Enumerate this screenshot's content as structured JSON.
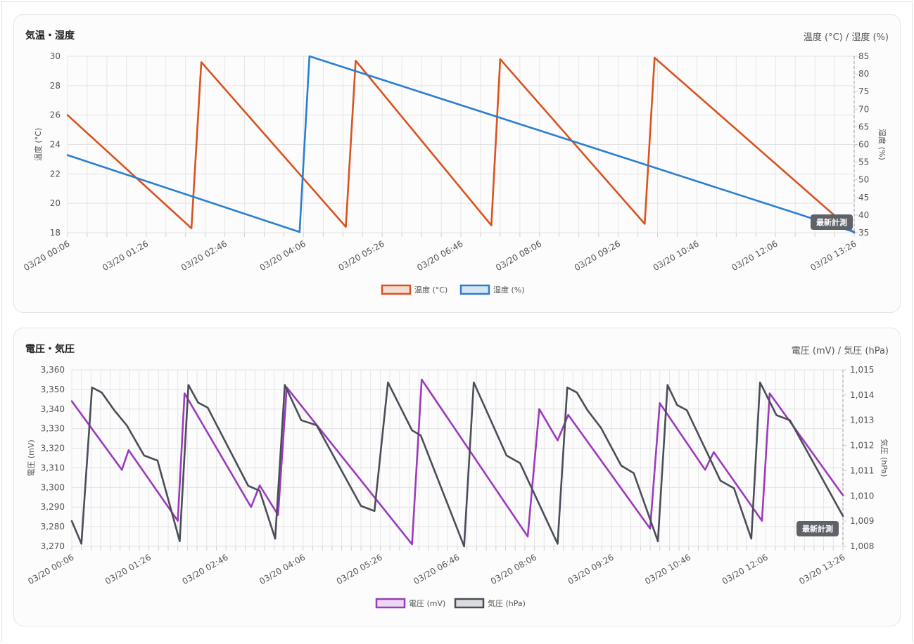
{
  "chart_data": [
    {
      "type": "line",
      "title": "気温・湿度",
      "unit_label": "温度 (°C) / 湿度 (%)",
      "x_tick_labels": [
        "03/20 00:06",
        "03/20 01:26",
        "03/20 02:46",
        "03/20 04:06",
        "03/20 05:26",
        "03/20 06:46",
        "03/20 08:06",
        "03/20 09:26",
        "03/20 10:46",
        "03/20 12:06",
        "03/20 13:26"
      ],
      "y_left": {
        "label": "温度 (°C)",
        "min": 18,
        "max": 30,
        "ticks": [
          "18",
          "20",
          "22",
          "24",
          "26",
          "28",
          "30"
        ]
      },
      "y_right": {
        "label": "湿度 (%)",
        "min": 35,
        "max": 85,
        "ticks": [
          "35",
          "40",
          "45",
          "50",
          "55",
          "60",
          "65",
          "70",
          "75",
          "80",
          "85"
        ]
      },
      "series": [
        {
          "name": "温度 (°C)",
          "axis": "left",
          "color": "#d9531e",
          "points": [
            [
              "03/20 00:06",
              26.0
            ],
            [
              "03/20 02:12",
              18.3
            ],
            [
              "03/20 02:22",
              29.6
            ],
            [
              "03/20 04:49",
              18.4
            ],
            [
              "03/20 04:59",
              29.7
            ],
            [
              "03/20 07:17",
              18.5
            ],
            [
              "03/20 07:26",
              29.8
            ],
            [
              "03/20 09:53",
              18.6
            ],
            [
              "03/20 10:03",
              29.9
            ],
            [
              "03/20 13:26",
              18.0
            ]
          ]
        },
        {
          "name": "湿度 (%)",
          "axis": "right",
          "color": "#2a7fd0",
          "points": [
            [
              "03/20 00:06",
              57
            ],
            [
              "03/20 04:02",
              35.2
            ],
            [
              "03/20 04:12",
              85
            ],
            [
              "03/20 13:26",
              35.2
            ]
          ]
        }
      ],
      "grid": true,
      "legend": "bottom-center",
      "badge": "最新計測"
    },
    {
      "type": "line",
      "title": "電圧・気圧",
      "unit_label": "電圧 (mV) / 気圧 (hPa)",
      "x_tick_labels": [
        "03/20 00:06",
        "03/20 01:26",
        "03/20 02:46",
        "03/20 04:06",
        "03/20 05:26",
        "03/20 06:46",
        "03/20 08:06",
        "03/20 09:26",
        "03/20 10:46",
        "03/20 12:06",
        "03/20 13:26"
      ],
      "y_left": {
        "label": "電圧 (mV)",
        "min": 3270,
        "max": 3360,
        "ticks": [
          "3,270",
          "3,280",
          "3,290",
          "3,300",
          "3,310",
          "3,320",
          "3,330",
          "3,340",
          "3,350",
          "3,360"
        ]
      },
      "y_right": {
        "label": "気圧 (hPa)",
        "min": 1008,
        "max": 1015,
        "ticks": [
          "1,008",
          "1,009",
          "1,010",
          "1,011",
          "1,012",
          "1,013",
          "1,014",
          "1,015"
        ]
      },
      "series": [
        {
          "name": "電圧 (mV)",
          "axis": "left",
          "color": "#9b3bbd",
          "points": [
            [
              "03/20 00:06",
              3344
            ],
            [
              "03/20 00:58",
              3309
            ],
            [
              "03/20 01:05",
              3319
            ],
            [
              "03/20 01:56",
              3283
            ],
            [
              "03/20 02:03",
              3348
            ],
            [
              "03/20 03:12",
              3290
            ],
            [
              "03/20 03:21",
              3301
            ],
            [
              "03/20 03:40",
              3286
            ],
            [
              "03/20 03:49",
              3351
            ],
            [
              "03/20 05:59",
              3271
            ],
            [
              "03/20 06:09",
              3355
            ],
            [
              "03/20 07:59",
              3275
            ],
            [
              "03/20 08:11",
              3340
            ],
            [
              "03/20 08:30",
              3324
            ],
            [
              "03/20 08:41",
              3337
            ],
            [
              "03/20 10:06",
              3279
            ],
            [
              "03/20 10:16",
              3343
            ],
            [
              "03/20 11:03",
              3309
            ],
            [
              "03/20 11:12",
              3318
            ],
            [
              "03/20 12:02",
              3283
            ],
            [
              "03/20 12:10",
              3348
            ],
            [
              "03/20 13:26",
              3296
            ]
          ]
        },
        {
          "name": "気圧 (hPa)",
          "axis": "right",
          "color": "#4a4e57",
          "points": [
            [
              "03/20 00:06",
              1009.0
            ],
            [
              "03/20 00:16",
              1008.1
            ],
            [
              "03/20 00:27",
              1014.3
            ],
            [
              "03/20 00:37",
              1014.1
            ],
            [
              "03/20 00:50",
              1013.4
            ],
            [
              "03/20 01:03",
              1012.8
            ],
            [
              "03/20 01:21",
              1011.6
            ],
            [
              "03/20 01:35",
              1011.4
            ],
            [
              "03/20 01:58",
              1008.2
            ],
            [
              "03/20 02:07",
              1014.4
            ],
            [
              "03/20 02:17",
              1013.7
            ],
            [
              "03/20 02:27",
              1013.5
            ],
            [
              "03/20 03:09",
              1010.4
            ],
            [
              "03/20 03:21",
              1010.2
            ],
            [
              "03/20 03:37",
              1008.3
            ],
            [
              "03/20 03:47",
              1014.4
            ],
            [
              "03/20 04:04",
              1013.0
            ],
            [
              "03/20 04:20",
              1012.8
            ],
            [
              "03/20 05:06",
              1009.6
            ],
            [
              "03/20 05:20",
              1009.4
            ],
            [
              "03/20 05:34",
              1014.5
            ],
            [
              "03/20 05:59",
              1012.6
            ],
            [
              "03/20 06:08",
              1012.4
            ],
            [
              "03/20 06:53",
              1008.0
            ],
            [
              "03/20 07:03",
              1014.5
            ],
            [
              "03/20 07:37",
              1011.6
            ],
            [
              "03/20 07:51",
              1011.3
            ],
            [
              "03/20 08:30",
              1008.1
            ],
            [
              "03/20 08:40",
              1014.3
            ],
            [
              "03/20 08:50",
              1014.1
            ],
            [
              "03/20 09:01",
              1013.4
            ],
            [
              "03/20 09:15",
              1012.7
            ],
            [
              "03/20 09:36",
              1011.2
            ],
            [
              "03/20 09:49",
              1010.9
            ],
            [
              "03/20 10:14",
              1008.2
            ],
            [
              "03/20 10:24",
              1014.4
            ],
            [
              "03/20 10:34",
              1013.6
            ],
            [
              "03/20 10:44",
              1013.4
            ],
            [
              "03/20 11:19",
              1010.6
            ],
            [
              "03/20 11:33",
              1010.3
            ],
            [
              "03/20 11:51",
              1008.3
            ],
            [
              "03/20 12:00",
              1014.5
            ],
            [
              "03/20 12:17",
              1013.2
            ],
            [
              "03/20 12:31",
              1013.0
            ],
            [
              "03/20 13:26",
              1009.2
            ]
          ]
        }
      ],
      "grid": true,
      "legend": "bottom-center",
      "badge": "最新計測"
    }
  ]
}
